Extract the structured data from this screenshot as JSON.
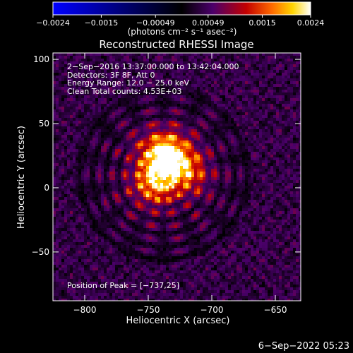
{
  "chart_data": {
    "type": "heatmap",
    "title": "Reconstructed RHESSI Image",
    "xlabel": "Heliocentric X (arcsec)",
    "ylabel": "Heliocentric Y (arcsec)",
    "xlim": [
      -825,
      -630
    ],
    "ylim": [
      -88,
      105
    ],
    "xticks": [
      -800,
      -750,
      -700,
      -650
    ],
    "xtick_labels": [
      "−800",
      "−750",
      "−700",
      "−650"
    ],
    "yticks": [
      100,
      50,
      0,
      -50
    ],
    "ytick_labels": [
      "100",
      "50",
      "0",
      "−50"
    ],
    "colorbar": {
      "range": [
        -0.0024,
        0.0024
      ],
      "ticks": [
        -0.0024,
        -0.0015,
        -0.00049,
        0.00049,
        0.0015,
        0.0024
      ],
      "tick_labels": [
        "−0.0024",
        "−0.0015",
        "−0.00049",
        "0.00049",
        "0.0015",
        "0.0024"
      ],
      "unit_label": "(photons cm⁻² s⁻¹ asec⁻²)",
      "colormap": [
        "#0000ff",
        "#000000",
        "#4b006b",
        "#c30000",
        "#ff6a00",
        "#ffd400",
        "#ffffff"
      ]
    },
    "annotations": [
      "2−Sep−2016 13:37:00.000 to 13:42:04.000",
      "Detectors: 3F 8F, Att 0",
      "Energy Range: 12.0 − 25.0 keV",
      "Clean    Total counts: 4.53E+03",
      "Position of Peak = [−737,25]"
    ],
    "peak": {
      "x": -737,
      "y": 25
    },
    "source_center": {
      "x": -738,
      "y": 10
    }
  },
  "footer_timestamp": "6−Sep−2022 05:23"
}
